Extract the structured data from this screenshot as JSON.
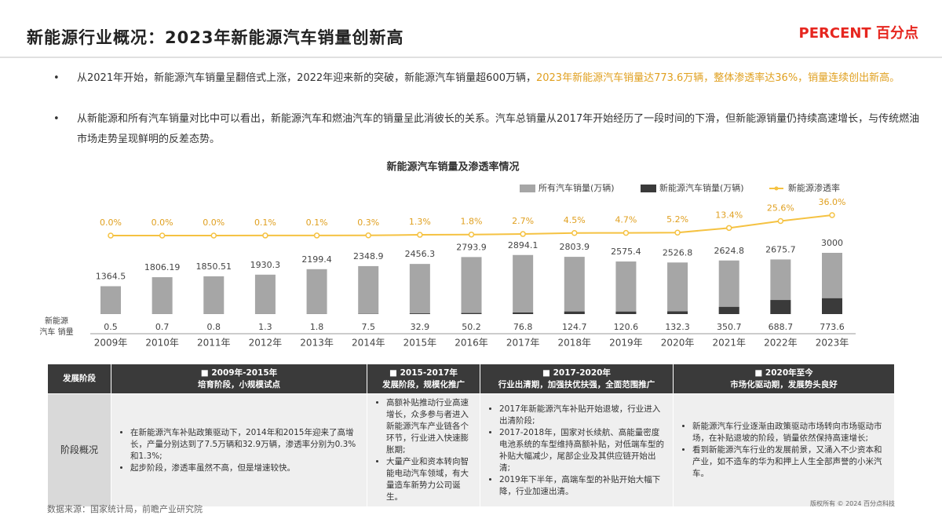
{
  "header": {
    "title": "新能源行业概况：2023年新能源汽车销量创新高",
    "logo_en": "PERCENT",
    "logo_cn": "百分点"
  },
  "bullets": [
    {
      "text": "从2021年开始，新能源汽车销量呈翻倍式上涨，2022年迎来新的突破，新能源汽车销量超600万辆，",
      "highlight": "2023年新能源汽车销量达773.6万辆，整体渗透率达36%，销量连续创出新高。"
    },
    {
      "text": "从新能源和所有汽车销量对比中可以看出，新能源汽车和燃油汽车的销量呈此消彼长的关系。汽车总销量从2017年开始经历了一段时间的下滑，但新能源销量仍持续高速增长，与传统燃油市场走势呈现鲜明的反差态势。"
    }
  ],
  "chart_data": {
    "type": "bar",
    "title": "新能源汽车销量及渗透率情况",
    "categories": [
      "2009年",
      "2010年",
      "2011年",
      "2012年",
      "2013年",
      "2014年",
      "2015年",
      "2016年",
      "2017年",
      "2018年",
      "2019年",
      "2020年",
      "2021年",
      "2022年",
      "2023年"
    ],
    "series": [
      {
        "name": "所有汽车销量(万辆)",
        "color": "#a6a6a6",
        "values": [
          1364.5,
          1806.19,
          1850.51,
          1930.3,
          2199.4,
          2348.9,
          2456.3,
          2793.9,
          2894.1,
          2803.9,
          2575.4,
          2526.8,
          2624.8,
          2675.7,
          3000
        ]
      },
      {
        "name": "新能源汽车销量(万辆)",
        "color": "#3a3a3a",
        "values": [
          0.5,
          0.7,
          0.8,
          1.3,
          1.8,
          7.5,
          32.9,
          50.2,
          76.8,
          124.7,
          120.6,
          132.3,
          350.7,
          688.7,
          773.6
        ]
      },
      {
        "name": "新能源渗透率",
        "color": "#f5c242",
        "type": "line",
        "values": [
          0,
          0,
          0,
          0.1,
          0.1,
          0.3,
          1.3,
          1.8,
          2.7,
          4.5,
          4.7,
          5.2,
          13.4,
          25.6,
          36
        ],
        "value_labels": [
          "0.0%",
          "0.0%",
          "0.0%",
          "0.1%",
          "0.1%",
          "0.3%",
          "1.3%",
          "1.8%",
          "2.7%",
          "4.5%",
          "4.7%",
          "5.2%",
          "13.4%",
          "25.6%",
          "36.0%"
        ]
      }
    ],
    "row_label": [
      "新能源",
      "汽车 销量"
    ]
  },
  "table": {
    "corner": "发展阶段",
    "row_label": "阶段概况",
    "phases": [
      {
        "period": "2009年-2015年",
        "stage": "培育阶段，小规模试点"
      },
      {
        "period": "2015-2017年",
        "stage": "发展阶段，规模化推广"
      },
      {
        "period": "2017-2020年",
        "stage": "行业出清期，加强扶优扶强，全面范围推广"
      },
      {
        "period": "2020年至今",
        "stage": "市场化驱动期，发展势头良好"
      }
    ],
    "cells": [
      [
        "在新能源汽车补贴政策驱动下，2014年和2015年迎来了高增长，产量分别达到了7.5万辆和32.9万辆，渗透率分别为0.3%和1.3%;",
        "起步阶段，渗透率虽然不高，但是增速较快。"
      ],
      [
        "高额补贴推动行业高速增长，众多参与者进入新能源汽车产业链各个环节，行业进入快速膨胀期;",
        "大量产业和资本转向智能电动汽车领域，有大量造车新势力公司诞生。"
      ],
      [
        "2017年新能源汽车补贴开始退坡，行业进入出清阶段;",
        "2017-2018年，国家对长续航、高能量密度电池系统的车型维持高额补贴，对低端车型的补贴大幅减少，尾部企业及其供应链开始出清;",
        "2019年下半年，高端车型的补贴开始大幅下降，行业加速出清。"
      ],
      [
        "新能源汽车行业逐渐由政策驱动市场转向市场驱动市场，在补贴退坡的阶段，销量依然保持高速增长;",
        "看到新能源汽车行业的发展前景，又涌入不少资本和产业，如不造车的华为和押上人生全部声誉的小米汽车。"
      ]
    ]
  },
  "footer": {
    "source": "数据来源：国家统计局，前瞻产业研究院",
    "copyright": "版权所有 © 2024 百分点科技"
  }
}
